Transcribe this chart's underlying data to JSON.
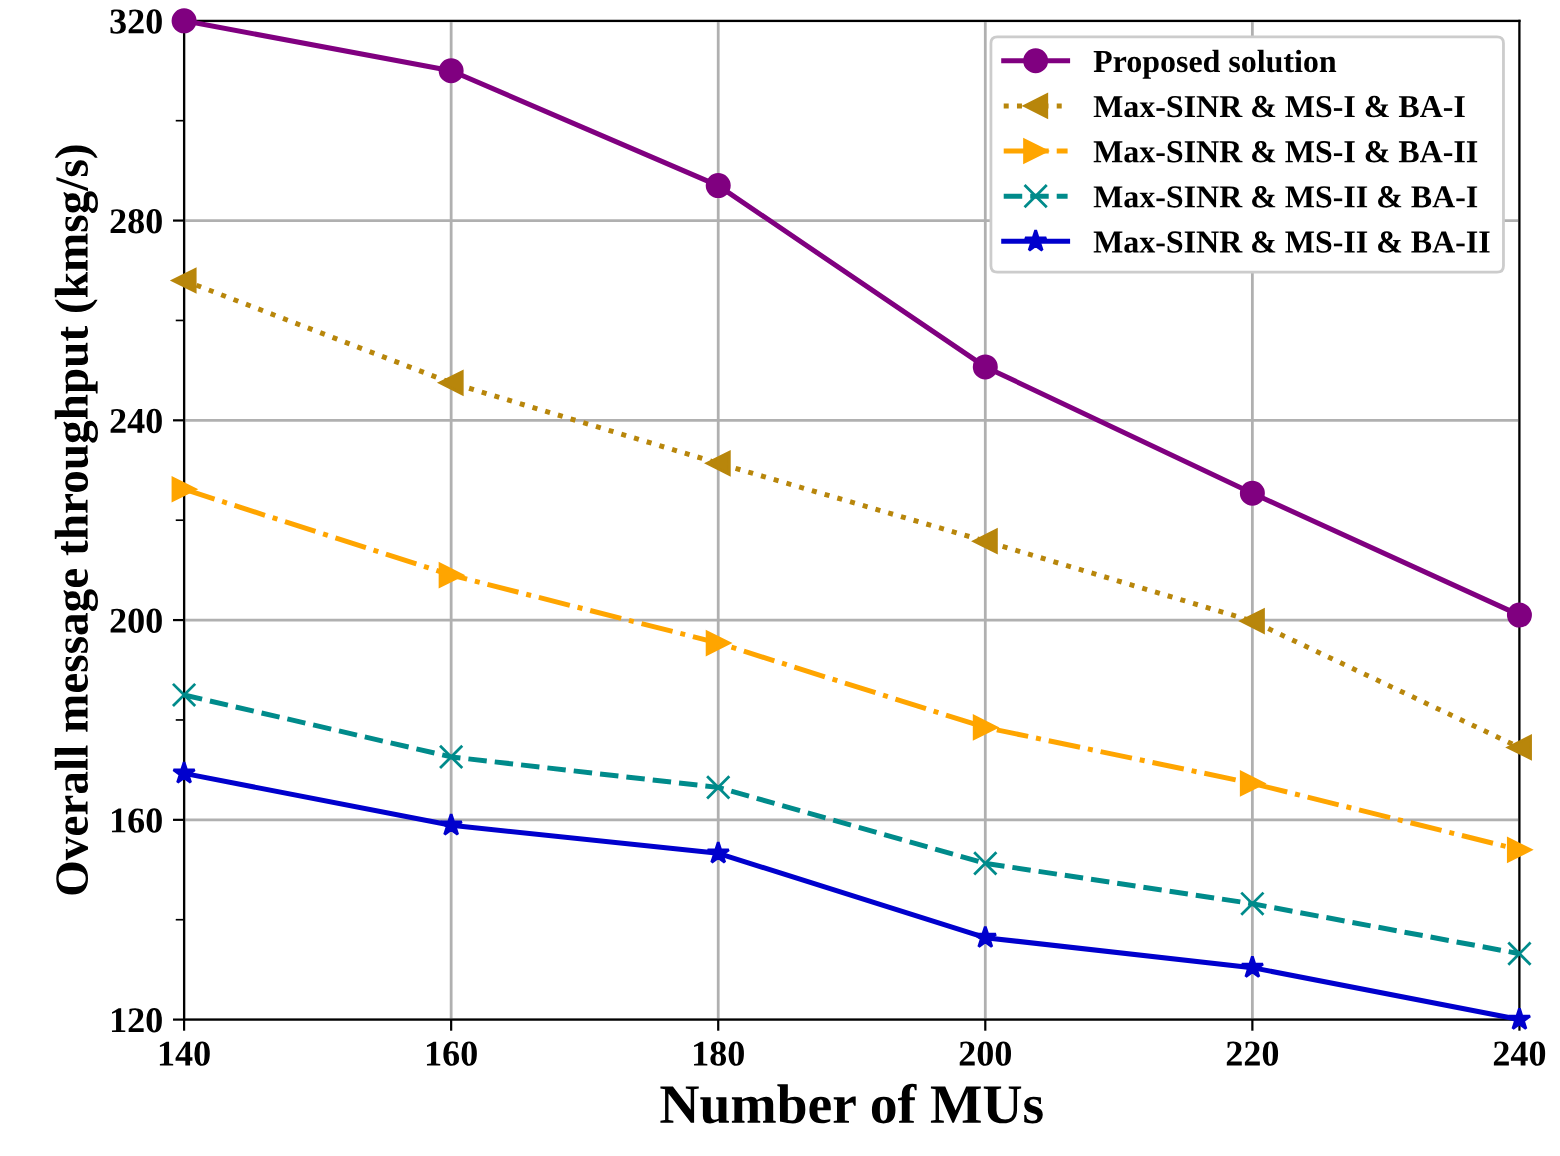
{
  "chart_data": {
    "type": "line",
    "xlabel": "Number of MUs",
    "ylabel": "Overall message throughput (kmsg/s)",
    "x": [
      140,
      160,
      180,
      200,
      220,
      240
    ],
    "series": [
      {
        "name": "Proposed solution",
        "color": "#800080",
        "marker": "circle",
        "line_style": "solid",
        "values": [
          320,
          310,
          287,
          250.7,
          225.4,
          201
        ]
      },
      {
        "name": "Max-SINR & MS-I & BA-I",
        "color": "#b8860b",
        "marker": "triangle_left",
        "line_style": "dotted",
        "values": [
          268,
          247.5,
          231.4,
          215.8,
          199.8,
          174.5
        ]
      },
      {
        "name": "Max-SINR & MS-I & BA-II",
        "color": "#ffa500",
        "marker": "triangle_right",
        "line_style": "dashdot",
        "values": [
          226.2,
          209,
          195.4,
          178.5,
          167.3,
          154
        ]
      },
      {
        "name": "Max-SINR & MS-II & BA-I",
        "color": "#008b8b",
        "marker": "cross",
        "line_style": "dashed",
        "values": [
          185,
          172.6,
          166.5,
          151.3,
          143.2,
          133.2
        ]
      },
      {
        "name": "Max-SINR & MS-II & BA-II",
        "color": "#0000cd",
        "marker": "star",
        "line_style": "solid",
        "values": [
          169.3,
          158.9,
          153.3,
          136.4,
          130.4,
          120
        ]
      }
    ],
    "xlim": [
      140,
      240
    ],
    "xticks": [
      140,
      160,
      180,
      200,
      220,
      240
    ],
    "ylim": [
      120,
      320
    ],
    "yticks": [
      120,
      {
        "value": 140,
        "label": null
      },
      160,
      {
        "value": 180,
        "label": null
      },
      200,
      {
        "value": 220,
        "label": null
      },
      240,
      {
        "value": 260,
        "label": null
      },
      280,
      {
        "value": 300,
        "label": null
      },
      320
    ],
    "grid": true,
    "legend": "top right"
  }
}
